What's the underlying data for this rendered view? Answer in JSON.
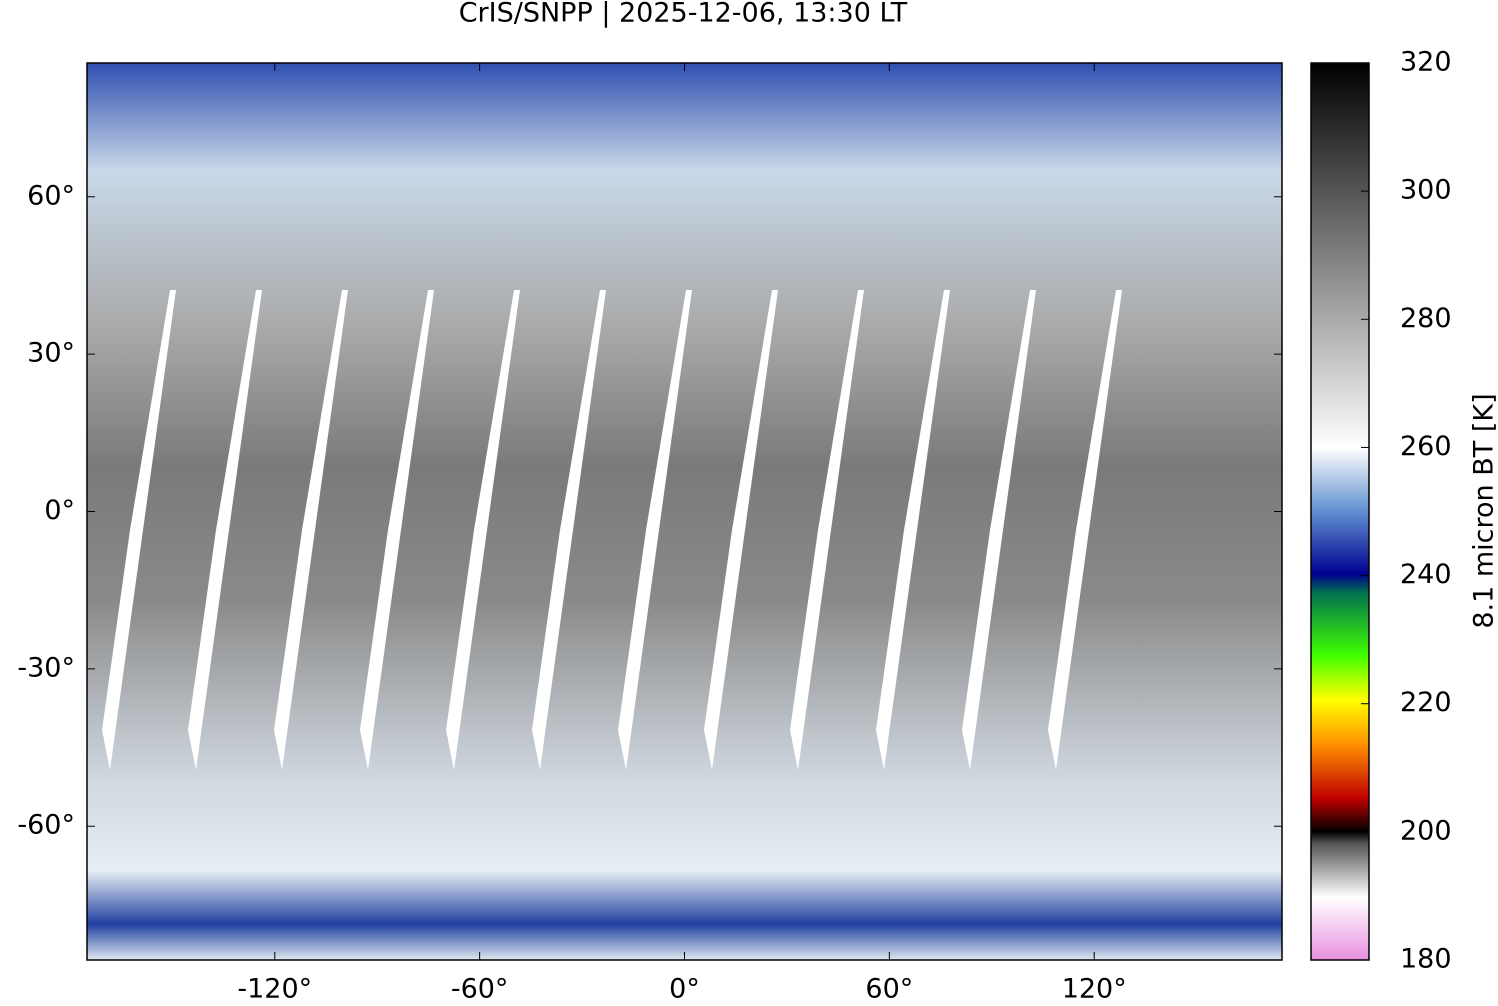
{
  "chart_data": {
    "type": "map",
    "title": "CrIS/SNPP | 2025-12-06, 13:30 LT",
    "xlim": [
      -175,
      175
    ],
    "ylim": [
      -85.5,
      85.5
    ],
    "xticks": [
      {
        "value": -120,
        "label": "-120°"
      },
      {
        "value": -60,
        "label": "-60°"
      },
      {
        "value": 0,
        "label": "0°"
      },
      {
        "value": 60,
        "label": "60°"
      },
      {
        "value": 120,
        "label": "120°"
      }
    ],
    "yticks": [
      {
        "value": -60,
        "label": "-60°"
      },
      {
        "value": -30,
        "label": "-30°"
      },
      {
        "value": 0,
        "label": "0°"
      },
      {
        "value": 30,
        "label": "30°"
      },
      {
        "value": 60,
        "label": "60°"
      }
    ],
    "colorbar": {
      "label": "8.1 micron BT [K]",
      "lim": [
        180,
        320
      ],
      "ticks": [
        180,
        200,
        220,
        240,
        260,
        280,
        300,
        320
      ]
    }
  }
}
